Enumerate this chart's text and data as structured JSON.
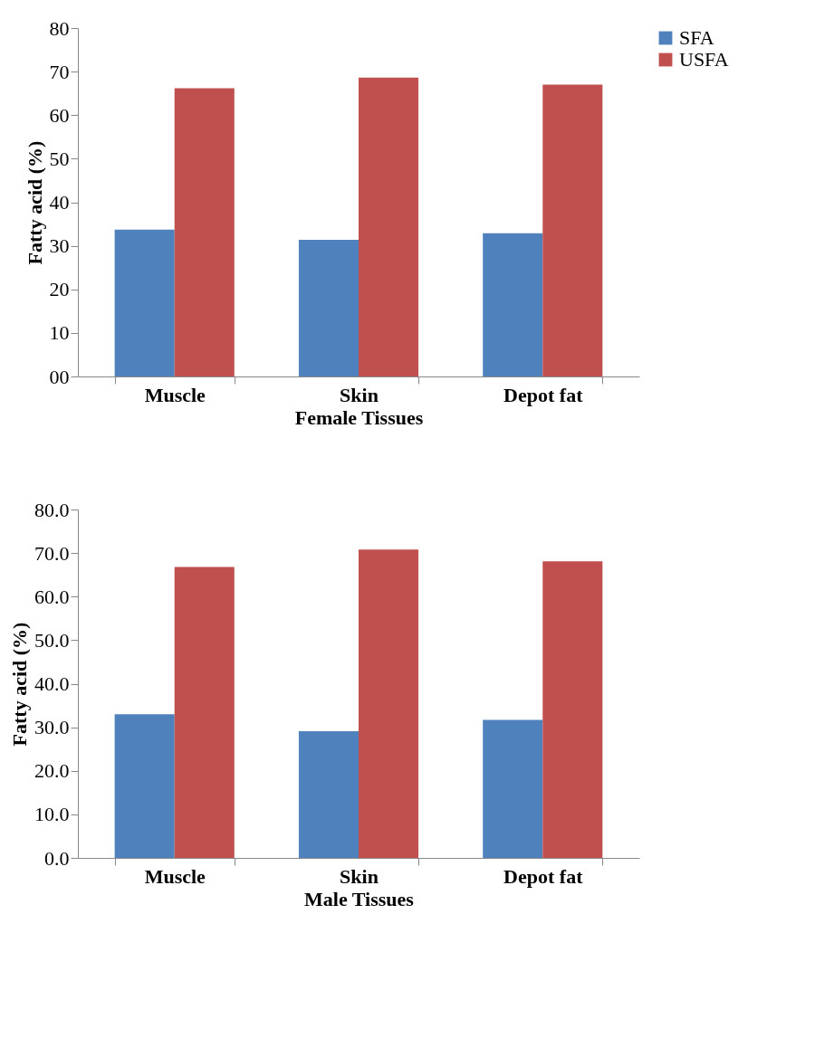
{
  "chart_data": [
    {
      "type": "bar",
      "categories": [
        "Muscle",
        "Skin",
        "Depot fat"
      ],
      "xlabel": "Female Tissues",
      "ylabel": "Fatty acid (%)",
      "series": [
        {
          "name": "SFA",
          "color": "#4f81bd",
          "values": [
            33.7,
            31.4,
            32.9
          ]
        },
        {
          "name": "USFA",
          "color": "#c0504d",
          "values": [
            66.2,
            68.6,
            67.0
          ]
        }
      ],
      "ylim": [
        0,
        80
      ],
      "yticks": [
        {
          "value": 0,
          "label": "00"
        },
        10,
        20,
        30,
        40,
        50,
        60,
        70,
        80
      ],
      "legend": "right",
      "grid": false
    },
    {
      "type": "bar",
      "categories": [
        "Muscle",
        "Skin",
        "Depot fat"
      ],
      "xlabel": "Male Tissues",
      "ylabel": "Fatty acid (%)",
      "series": [
        {
          "name": "SFA",
          "color": "#4f81bd",
          "values": [
            33.0,
            29.1,
            31.7
          ]
        },
        {
          "name": "USFA",
          "color": "#c0504d",
          "values": [
            66.8,
            70.8,
            68.1
          ]
        }
      ],
      "ylim": [
        0,
        80
      ],
      "yticks": [
        {
          "value": 0,
          "label": "0.0"
        },
        {
          "value": 10,
          "label": "10.0"
        },
        {
          "value": 20,
          "label": "20.0"
        },
        {
          "value": 30,
          "label": "30.0"
        },
        {
          "value": 40,
          "label": "40.0"
        },
        {
          "value": 50,
          "label": "50.0"
        },
        {
          "value": 60,
          "label": "60.0"
        },
        {
          "value": 70,
          "label": "70.0"
        },
        {
          "value": 80,
          "label": "80.0"
        }
      ],
      "legend": "right",
      "grid": false
    }
  ]
}
